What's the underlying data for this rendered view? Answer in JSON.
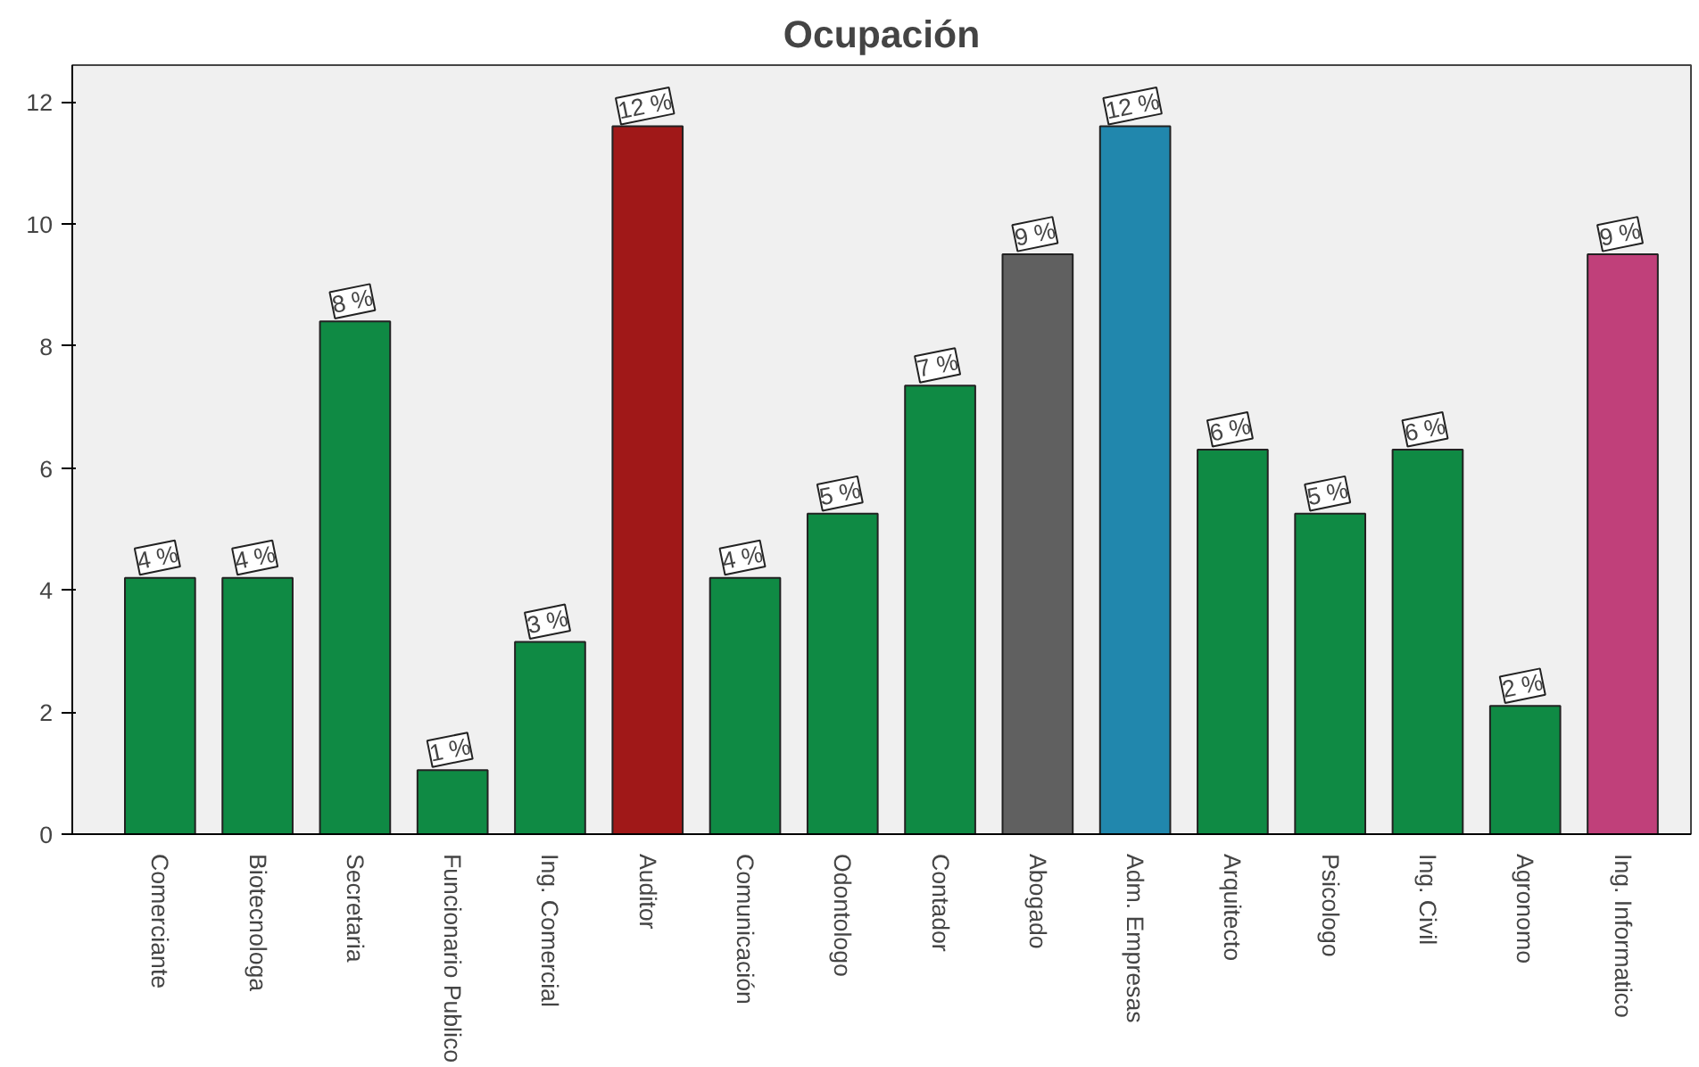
{
  "chart_data": {
    "type": "bar",
    "title": "Ocupación",
    "categories": [
      "Comerciante",
      "Biotecnologa",
      "Secretaria",
      "Funcionario Publico",
      "Ing. Comercial",
      "Auditor",
      "Comunicación",
      "Odontologo",
      "Contador",
      "Abogado",
      "Adm. Empresas",
      "Arquitecto",
      "Psicologo",
      "Ing. Civil",
      "Agronomo",
      "Ing. Informatico"
    ],
    "values": [
      4.2,
      4.2,
      8.4,
      1.05,
      3.15,
      11.6,
      4.2,
      5.25,
      7.35,
      9.5,
      11.6,
      6.3,
      5.25,
      6.3,
      2.1,
      9.5
    ],
    "colors": [
      "#0f8a44",
      "#0f8a44",
      "#0f8a44",
      "#0f8a44",
      "#0f8a44",
      "#a01818",
      "#0f8a44",
      "#0f8a44",
      "#0f8a44",
      "#606060",
      "#2187ad",
      "#0f8a44",
      "#0f8a44",
      "#0f8a44",
      "#0f8a44",
      "#c0407a"
    ],
    "value_labels": [
      "4 %",
      "4 %",
      "8 %",
      "1 %",
      "3 %",
      "12 %",
      "4 %",
      "5 %",
      "7 %",
      "9 %",
      "12 %",
      "6 %",
      "5 %",
      "6 %",
      "2 %",
      "9 %"
    ],
    "ylim": [
      0,
      12.6
    ],
    "yticks": [
      0,
      2,
      4,
      6,
      8,
      10,
      12
    ],
    "grid": false
  }
}
